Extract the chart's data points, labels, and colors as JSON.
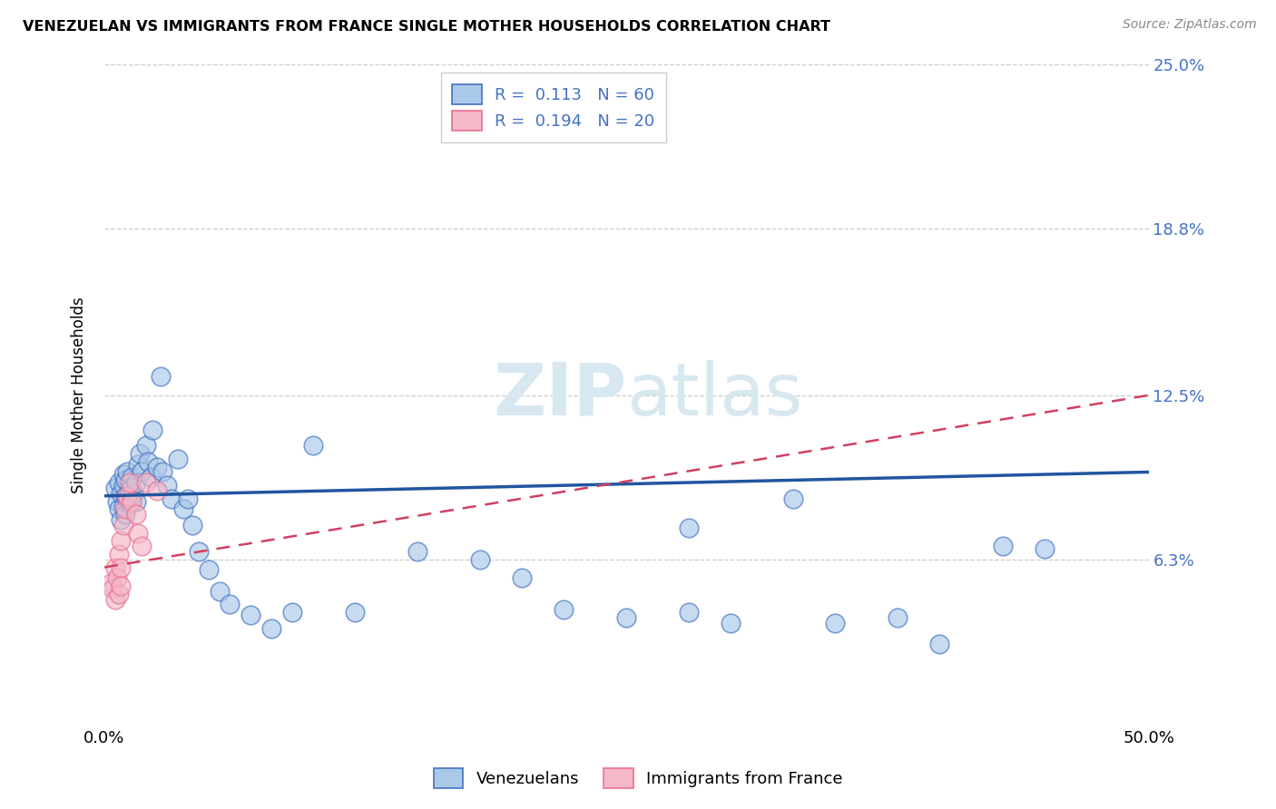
{
  "title": "VENEZUELAN VS IMMIGRANTS FROM FRANCE SINGLE MOTHER HOUSEHOLDS CORRELATION CHART",
  "source": "Source: ZipAtlas.com",
  "ylabel": "Single Mother Households",
  "xlim": [
    0.0,
    0.5
  ],
  "ylim": [
    0.0,
    0.25
  ],
  "xtick_labels": [
    "0.0%",
    "50.0%"
  ],
  "ytick_labels": [
    "6.3%",
    "12.5%",
    "18.8%",
    "25.0%"
  ],
  "ytick_values": [
    0.063,
    0.125,
    0.188,
    0.25
  ],
  "legend_label1": "Venezuelans",
  "legend_label2": "Immigrants from France",
  "r1": "0.113",
  "n1": "60",
  "r2": "0.194",
  "n2": "20",
  "color_blue_fill": "#aac8e8",
  "color_blue_edge": "#4472c4",
  "color_pink_fill": "#f4b8c8",
  "color_pink_edge": "#e87090",
  "color_line_blue": "#2255a0",
  "color_line_pink": "#d04060",
  "color_text_blue": "#4472c4",
  "background": "#ffffff",
  "grid_color": "#cccccc",
  "watermark_color": "#d8e8f0",
  "ven_x": [
    0.005,
    0.006,
    0.007,
    0.007,
    0.008,
    0.008,
    0.009,
    0.009,
    0.009,
    0.01,
    0.01,
    0.01,
    0.011,
    0.011,
    0.012,
    0.012,
    0.013,
    0.013,
    0.014,
    0.015,
    0.015,
    0.016,
    0.017,
    0.018,
    0.02,
    0.021,
    0.022,
    0.023,
    0.025,
    0.027,
    0.028,
    0.03,
    0.032,
    0.035,
    0.038,
    0.04,
    0.042,
    0.045,
    0.05,
    0.055,
    0.06,
    0.07,
    0.08,
    0.09,
    0.1,
    0.12,
    0.15,
    0.18,
    0.2,
    0.22,
    0.25,
    0.28,
    0.3,
    0.33,
    0.35,
    0.38,
    0.4,
    0.43,
    0.45,
    0.28
  ],
  "ven_y": [
    0.09,
    0.085,
    0.092,
    0.082,
    0.088,
    0.078,
    0.083,
    0.091,
    0.095,
    0.087,
    0.093,
    0.08,
    0.086,
    0.096,
    0.089,
    0.084,
    0.094,
    0.09,
    0.088,
    0.092,
    0.085,
    0.099,
    0.103,
    0.096,
    0.106,
    0.1,
    0.094,
    0.112,
    0.098,
    0.132,
    0.096,
    0.091,
    0.086,
    0.101,
    0.082,
    0.086,
    0.076,
    0.066,
    0.059,
    0.051,
    0.046,
    0.042,
    0.037,
    0.043,
    0.106,
    0.043,
    0.066,
    0.063,
    0.056,
    0.044,
    0.041,
    0.043,
    0.039,
    0.086,
    0.039,
    0.041,
    0.031,
    0.068,
    0.067,
    0.075
  ],
  "fra_x": [
    0.003,
    0.004,
    0.005,
    0.005,
    0.006,
    0.007,
    0.007,
    0.008,
    0.008,
    0.009,
    0.01,
    0.011,
    0.012,
    0.013,
    0.015,
    0.016,
    0.018,
    0.02,
    0.025,
    0.008
  ],
  "fra_y": [
    0.054,
    0.052,
    0.048,
    0.06,
    0.056,
    0.05,
    0.065,
    0.06,
    0.07,
    0.076,
    0.082,
    0.087,
    0.092,
    0.085,
    0.08,
    0.073,
    0.068,
    0.092,
    0.089,
    0.053
  ]
}
